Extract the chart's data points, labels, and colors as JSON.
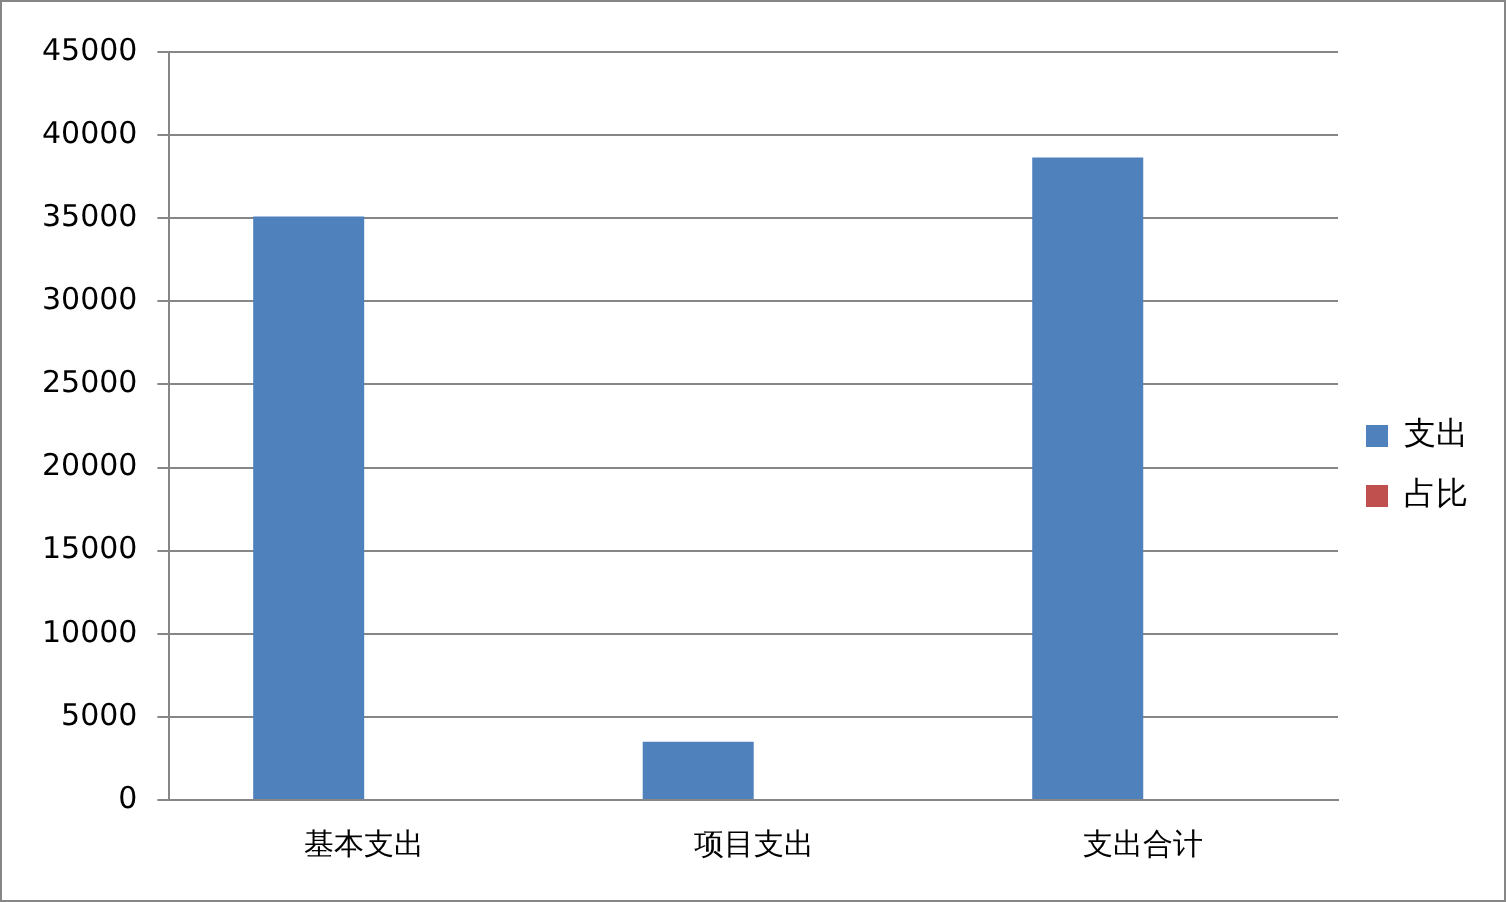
{
  "chart_data": {
    "type": "bar",
    "categories": [
      "基本支出",
      "项目支出",
      "支出合计"
    ],
    "series": [
      {
        "name": "支出",
        "color": "#4f81bd",
        "values": [
          35100,
          3500,
          38650
        ]
      },
      {
        "name": "占比",
        "color": "#c0504d",
        "values": [
          null,
          null,
          null
        ]
      }
    ],
    "ylim": [
      0,
      45000
    ],
    "yticks": [
      0,
      5000,
      10000,
      15000,
      20000,
      25000,
      30000,
      35000,
      40000,
      45000
    ],
    "grid": "y",
    "legend": "right"
  }
}
